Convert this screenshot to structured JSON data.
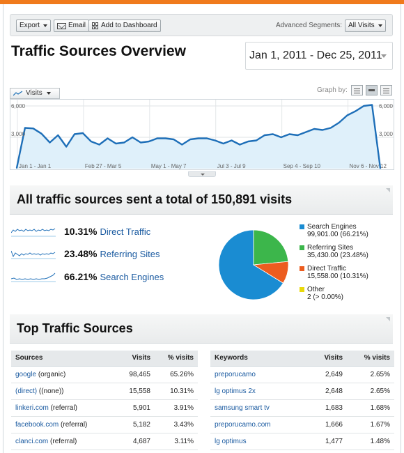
{
  "toolbar": {
    "export_label": "Export",
    "email_label": "Email",
    "add_dashboard_label": "Add to Dashboard",
    "segments_label": "Advanced Segments:",
    "segments_value": "All Visits"
  },
  "header": {
    "title": "Traffic Sources Overview",
    "date_range": "Jan 1, 2011 - Dec 25, 2011"
  },
  "graph": {
    "metric": "Visits",
    "graph_by_label": "Graph by:",
    "y_ticks": [
      "6,000",
      "3,000"
    ],
    "x_ticks": [
      "Jan 1 - Jan 1",
      "Feb 27 - Mar 5",
      "May 1 - May 7",
      "Jul 3 - Jul 9",
      "Sep 4 - Sep 10",
      "Nov 6 - Nov 12"
    ]
  },
  "chart_data": {
    "type": "area",
    "ylabel": "Visits",
    "ylim": [
      0,
      6000
    ],
    "x_tick_labels": [
      "Jan 1 - Jan 1",
      "Feb 27 - Mar 5",
      "May 1 - May 7",
      "Jul 3 - Jul 9",
      "Sep 4 - Sep 10",
      "Nov 6 - Nov 12"
    ],
    "values": [
      60,
      3900,
      3850,
      3350,
      2500,
      3200,
      2100,
      3300,
      3400,
      2600,
      2300,
      2900,
      2400,
      2500,
      3000,
      2500,
      2600,
      2900,
      2900,
      2800,
      2300,
      2800,
      2900,
      2900,
      2700,
      2400,
      2700,
      2300,
      2600,
      2700,
      3200,
      3300,
      3000,
      3300,
      3200,
      3500,
      3800,
      3700,
      3900,
      4400,
      5100,
      5500,
      6000,
      6100,
      30
    ]
  },
  "overview": {
    "title": "All traffic sources sent a total of 150,891 visits",
    "sources": [
      {
        "pct": "10.31%",
        "name": "Direct Traffic"
      },
      {
        "pct": "23.48%",
        "name": "Referring Sites"
      },
      {
        "pct": "66.21%",
        "name": "Search Engines"
      }
    ],
    "legend": [
      {
        "name": "Search Engines",
        "value": "99,901.00 (66.21%)",
        "color": "#1a8cd2"
      },
      {
        "name": "Referring Sites",
        "value": "35,430.00 (23.48%)",
        "color": "#3cb64b"
      },
      {
        "name": "Direct Traffic",
        "value": "15,558.00 (10.31%)",
        "color": "#ec5c1f"
      },
      {
        "name": "Other",
        "value": "2 (> 0.00%)",
        "color": "#e9d90a"
      }
    ]
  },
  "pie_data": {
    "type": "pie",
    "slices": [
      {
        "name": "Search Engines",
        "value": 66.21
      },
      {
        "name": "Referring Sites",
        "value": 23.48
      },
      {
        "name": "Direct Traffic",
        "value": 10.31
      },
      {
        "name": "Other",
        "value": 0.0
      }
    ]
  },
  "top_sources": {
    "title": "Top Traffic Sources",
    "sources_table": {
      "headers": [
        "Sources",
        "Visits",
        "% visits"
      ],
      "rows": [
        {
          "name": "google",
          "suffix": "(organic)",
          "visits": "98,465",
          "pct": "65.26%"
        },
        {
          "name": "(direct)",
          "suffix": "((none))",
          "visits": "15,558",
          "pct": "10.31%"
        },
        {
          "name": "linkeri.com",
          "suffix": "(referral)",
          "visits": "5,901",
          "pct": "3.91%"
        },
        {
          "name": "facebook.com",
          "suffix": "(referral)",
          "visits": "5,182",
          "pct": "3.43%"
        },
        {
          "name": "clanci.com",
          "suffix": "(referral)",
          "visits": "4,687",
          "pct": "3.11%"
        }
      ]
    },
    "keywords_table": {
      "headers": [
        "Keywords",
        "Visits",
        "% visits"
      ],
      "rows": [
        {
          "name": "preporucamo",
          "visits": "2,649",
          "pct": "2.65%"
        },
        {
          "name": "lg optimus 2x",
          "visits": "2,648",
          "pct": "2.65%"
        },
        {
          "name": "samsung smart tv",
          "visits": "1,683",
          "pct": "1.68%"
        },
        {
          "name": "preporucamo.com",
          "visits": "1,666",
          "pct": "1.67%"
        },
        {
          "name": "lg optimus",
          "visits": "1,477",
          "pct": "1.48%"
        }
      ]
    }
  }
}
